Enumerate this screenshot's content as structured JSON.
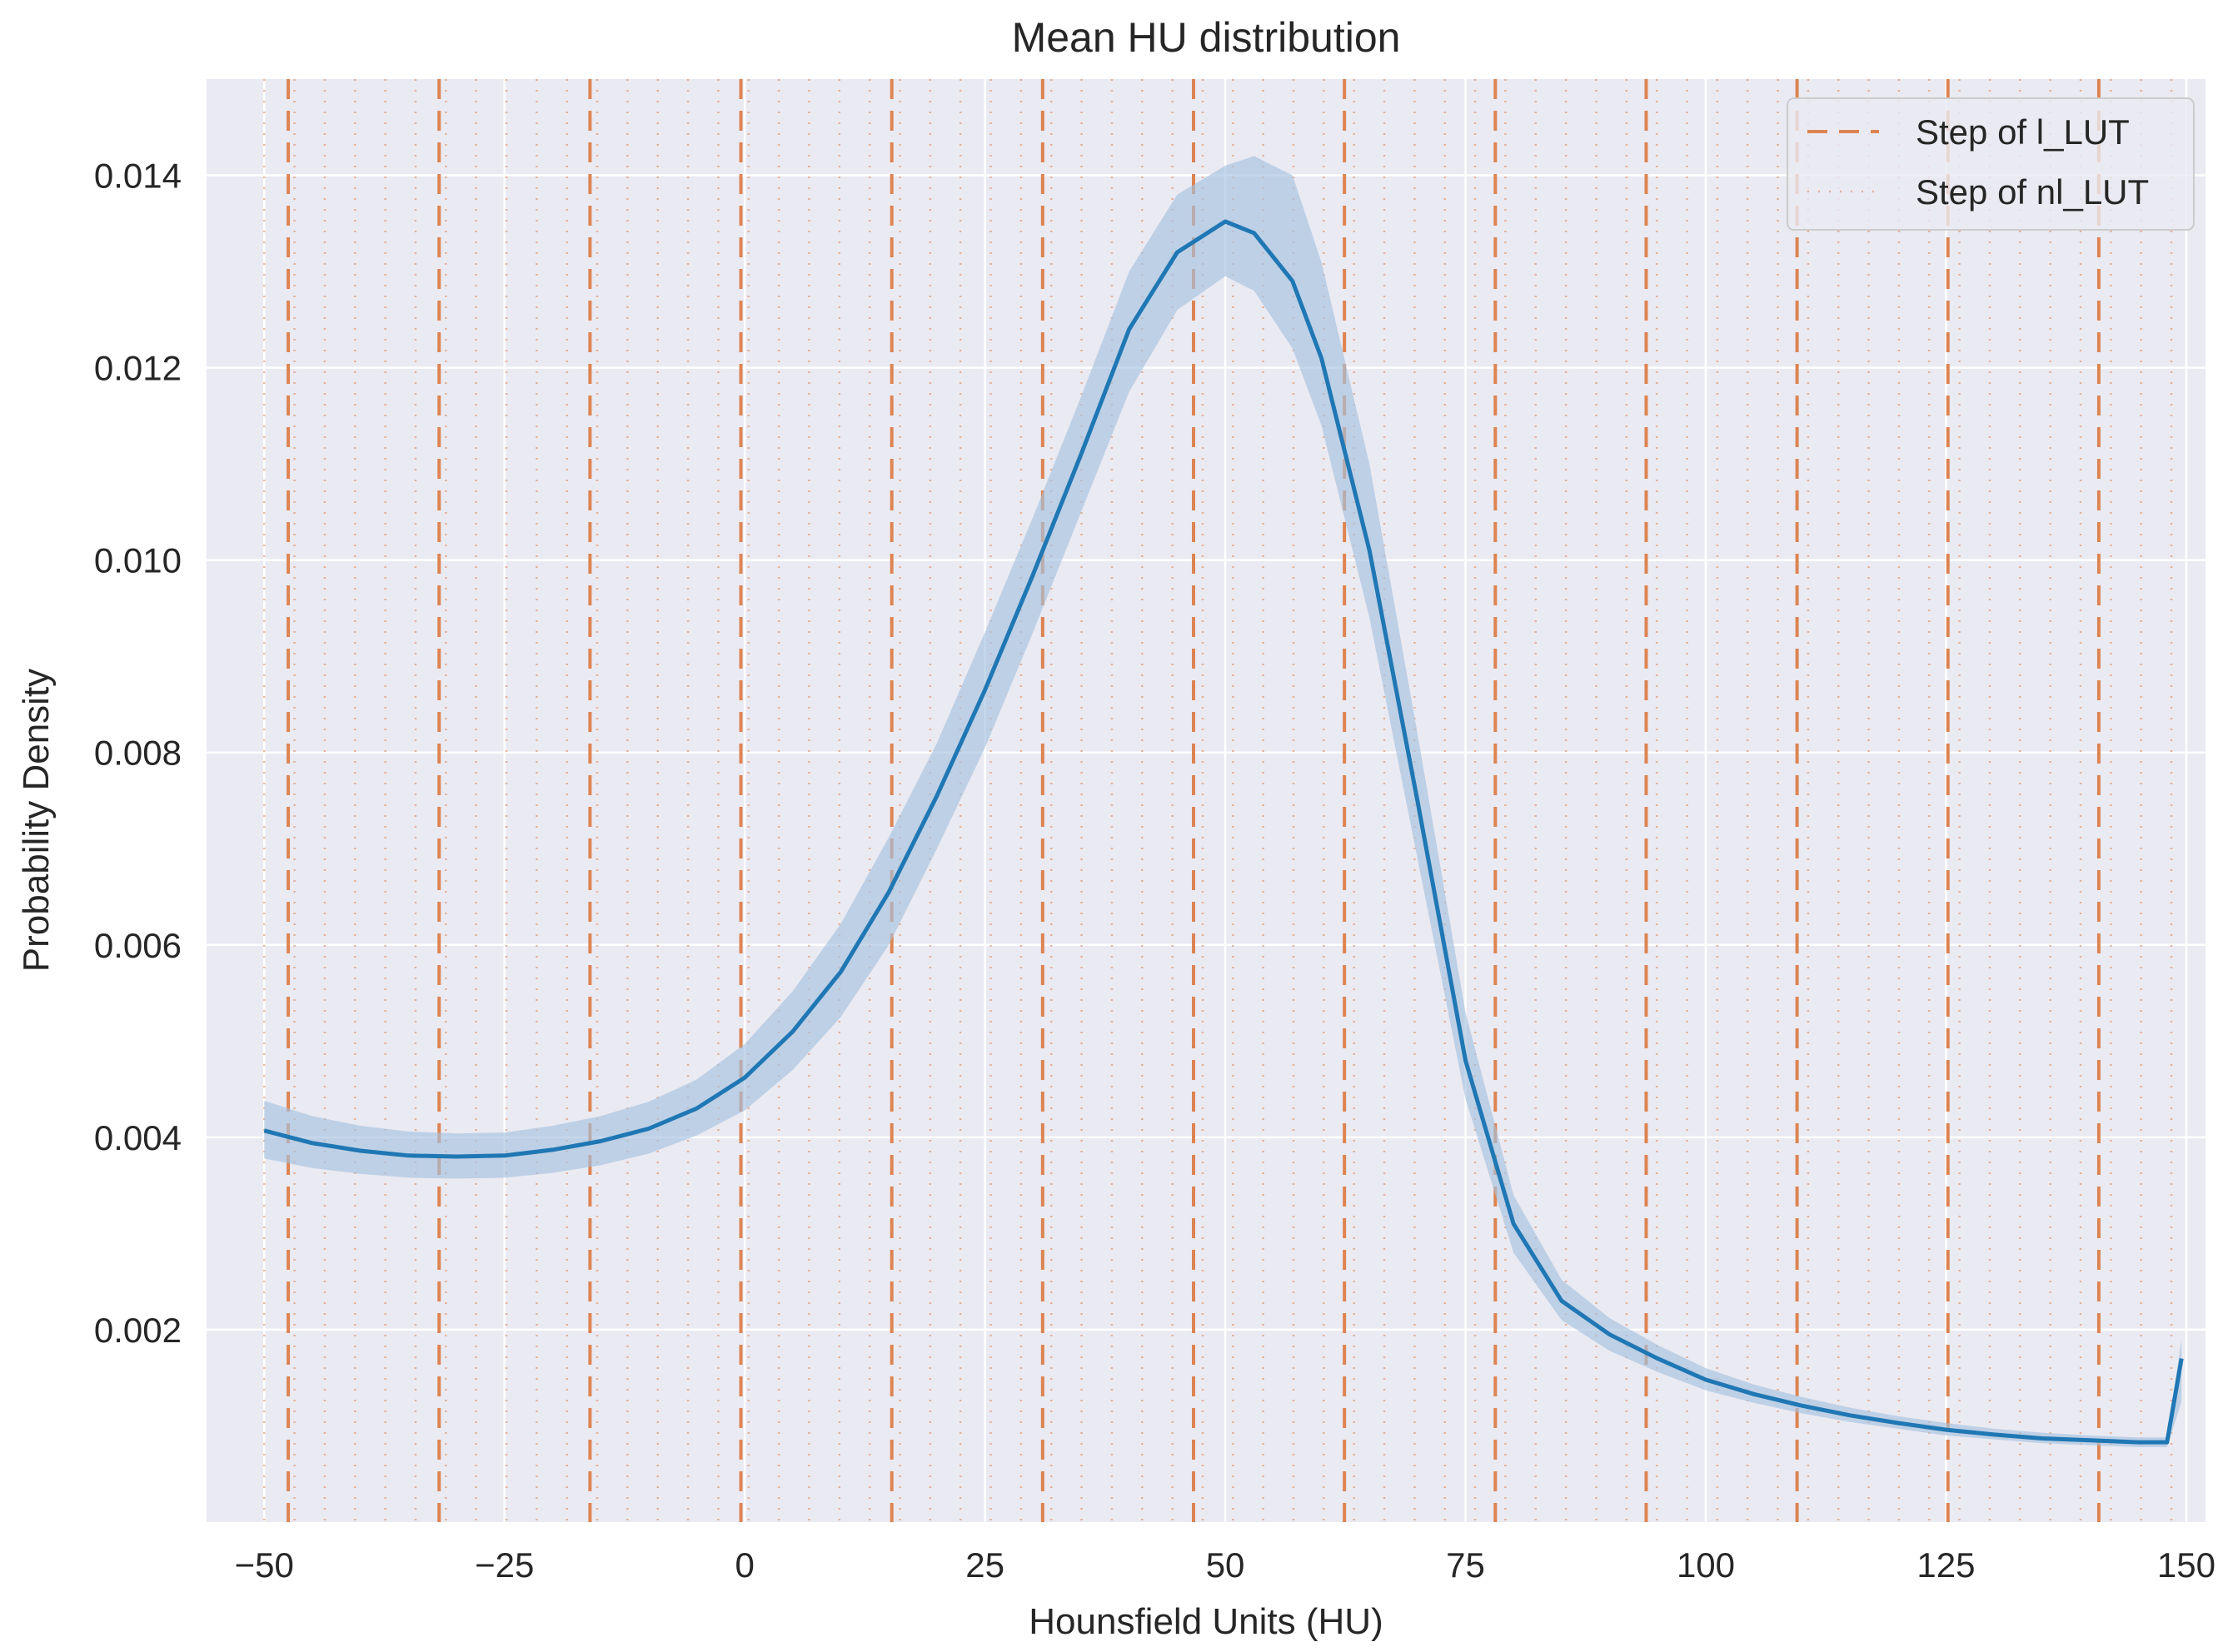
{
  "chart_data": {
    "type": "line",
    "title": "Mean HU distribution",
    "xlabel": "Hounsfield Units (HU)",
    "ylabel": "Probability Density",
    "xlim": [
      -56,
      152
    ],
    "ylim": [
      0.0,
      0.015
    ],
    "x_ticks": [
      -50,
      -25,
      0,
      25,
      50,
      75,
      100,
      125,
      150
    ],
    "x_tick_labels": [
      "−50",
      "−25",
      "0",
      "25",
      "50",
      "75",
      "100",
      "125",
      "150"
    ],
    "y_ticks": [
      0.002,
      0.004,
      0.006,
      0.008,
      0.01,
      0.012,
      0.014
    ],
    "y_tick_labels": [
      "0.002",
      "0.004",
      "0.006",
      "0.008",
      "0.010",
      "0.012",
      "0.014"
    ],
    "grid": true,
    "legend_position": "top-right",
    "legend": [
      {
        "label": "Step of l_LUT",
        "style": "dashed"
      },
      {
        "label": "Step of nl_LUT",
        "style": "dotted"
      }
    ],
    "colors": {
      "background": "#eaeaf2",
      "grid": "#ffffff",
      "line": "#1f77b4",
      "band": "#a6c1df",
      "step_lines": "#dd8452"
    },
    "series": [
      {
        "x": [
          -50,
          -45,
          -40,
          -35,
          -30,
          -25,
          -20,
          -15,
          -10,
          -5,
          0,
          5,
          10,
          15,
          20,
          25,
          30,
          35,
          40,
          45,
          50,
          53,
          57,
          60,
          65,
          70,
          75,
          80,
          85,
          90,
          95,
          100,
          105,
          110,
          115,
          120,
          125,
          130,
          135,
          140,
          145,
          148,
          149.5
        ],
        "y": [
          0.00407,
          0.00394,
          0.00386,
          0.00381,
          0.0038,
          0.00381,
          0.00387,
          0.00396,
          0.00409,
          0.0043,
          0.00462,
          0.0051,
          0.00572,
          0.00655,
          0.00755,
          0.00865,
          0.00985,
          0.0111,
          0.0124,
          0.0132,
          0.01352,
          0.0134,
          0.0129,
          0.0121,
          0.0101,
          0.0075,
          0.0048,
          0.0031,
          0.0023,
          0.00195,
          0.0017,
          0.00148,
          0.00133,
          0.00121,
          0.00111,
          0.00103,
          0.00096,
          0.00091,
          0.00087,
          0.00085,
          0.00083,
          0.00083,
          0.0017
        ],
        "lower": [
          0.00378,
          0.00368,
          0.00362,
          0.00358,
          0.00357,
          0.00358,
          0.00363,
          0.00371,
          0.00383,
          0.00402,
          0.00428,
          0.0047,
          0.00525,
          0.006,
          0.007,
          0.00805,
          0.00925,
          0.0105,
          0.01175,
          0.0126,
          0.01295,
          0.0128,
          0.0122,
          0.0114,
          0.0094,
          0.0069,
          0.0044,
          0.0028,
          0.0021,
          0.00178,
          0.00156,
          0.00137,
          0.00124,
          0.00113,
          0.00104,
          0.00097,
          0.0009,
          0.00086,
          0.00082,
          0.0008,
          0.00078,
          0.00078,
          0.00125
        ],
        "upper": [
          0.00438,
          0.00422,
          0.00412,
          0.00406,
          0.00404,
          0.00405,
          0.00412,
          0.00422,
          0.00437,
          0.0046,
          0.00497,
          0.00552,
          0.00622,
          0.00712,
          0.0081,
          0.00925,
          0.01045,
          0.0117,
          0.013,
          0.0138,
          0.0141,
          0.0142,
          0.014,
          0.0131,
          0.011,
          0.0082,
          0.0053,
          0.0034,
          0.00252,
          0.00212,
          0.00184,
          0.0016,
          0.00143,
          0.0013,
          0.00119,
          0.0011,
          0.00103,
          0.00097,
          0.00093,
          0.0009,
          0.00088,
          0.00088,
          0.0019
        ]
      }
    ],
    "step_l_lut": [
      -47.5,
      -31.8,
      -16.1,
      -0.4,
      15.3,
      31.0,
      46.7,
      62.4,
      78.1,
      93.8,
      109.5,
      125.2,
      140.9
    ],
    "step_nl_lut_range": [
      -50,
      150
    ],
    "step_nl_lut_spacing": 3.15
  }
}
